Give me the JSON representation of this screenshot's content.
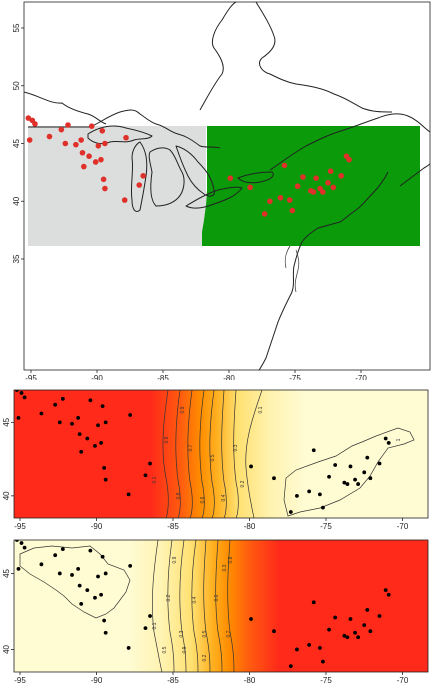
{
  "colors": {
    "west_region": "#dcdedd",
    "east_region": "#0a9a0a",
    "site_point": "#e0302a",
    "sample_point": "#000000",
    "high_prob": "#ff2a1a",
    "mid_prob": "#ff8c00",
    "low_prob": "#fffbd2"
  },
  "panels": {
    "map": {
      "x_ticks": [
        "-95",
        "-90",
        "-85",
        "-80",
        "-75",
        "-70"
      ],
      "y_ticks": [
        "55",
        "50",
        "45",
        "40",
        "35"
      ]
    },
    "prob_east_to_west": {
      "x_ticks": [
        "-95",
        "-90",
        "-85",
        "-80",
        "-75",
        "-70"
      ],
      "y_ticks": [
        "45",
        "40"
      ],
      "contour_labels": [
        "0.9",
        "0.8",
        "0.7",
        "0.6",
        "0.5",
        "0.4",
        "0.3",
        "0.2",
        "0.1",
        "0.1",
        "0.9",
        "1"
      ]
    },
    "prob_west_to_east": {
      "x_ticks": [
        "-95",
        "-90",
        "-85",
        "-80",
        "-75",
        "-70"
      ],
      "y_ticks": [
        "45",
        "40"
      ],
      "contour_labels": [
        "0.1",
        "0.2",
        "0.3",
        "0.4",
        "0.5",
        "0.6",
        "0.7",
        "0.8",
        "0.9",
        "0.9",
        "0.5",
        "0.2",
        "0.3"
      ]
    }
  },
  "sites": {
    "west": [
      [
        -95.2,
        47.2
      ],
      [
        -94.9,
        47.0
      ],
      [
        -94.7,
        46.7
      ],
      [
        -95.1,
        45.3
      ],
      [
        -93.6,
        45.6
      ],
      [
        -92.7,
        46.2
      ],
      [
        -92.2,
        46.6
      ],
      [
        -92.4,
        45.0
      ],
      [
        -91.6,
        44.9
      ],
      [
        -91.2,
        45.3
      ],
      [
        -90.4,
        46.5
      ],
      [
        -89.6,
        46.1
      ],
      [
        -89.4,
        45.0
      ],
      [
        -89.9,
        44.8
      ],
      [
        -91.1,
        44.2
      ],
      [
        -90.6,
        43.9
      ],
      [
        -89.7,
        43.6
      ],
      [
        -90.1,
        43.4
      ],
      [
        -91.0,
        43.0
      ],
      [
        -87.8,
        45.5
      ],
      [
        -86.5,
        42.2
      ],
      [
        -89.5,
        41.9
      ],
      [
        -89.4,
        41.1
      ],
      [
        -87.9,
        40.1
      ],
      [
        -86.8,
        41.4
      ]
    ],
    "east": [
      [
        -79.9,
        42.0
      ],
      [
        -78.4,
        41.2
      ],
      [
        -75.8,
        43.1
      ],
      [
        -74.4,
        42.1
      ],
      [
        -74.8,
        41.3
      ],
      [
        -73.4,
        42.0
      ],
      [
        -72.5,
        41.6
      ],
      [
        -71.5,
        42.2
      ],
      [
        -70.9,
        43.6
      ],
      [
        -71.1,
        43.9
      ],
      [
        -72.1,
        41.2
      ],
      [
        -73.1,
        41.1
      ],
      [
        -73.8,
        40.9
      ],
      [
        -72.9,
        40.8
      ],
      [
        -76.1,
        40.3
      ],
      [
        -75.4,
        40.1
      ],
      [
        -76.9,
        40.0
      ],
      [
        -77.3,
        38.9
      ],
      [
        -75.2,
        39.2
      ],
      [
        -73.6,
        40.8
      ],
      [
        -72.3,
        42.6
      ]
    ]
  }
}
